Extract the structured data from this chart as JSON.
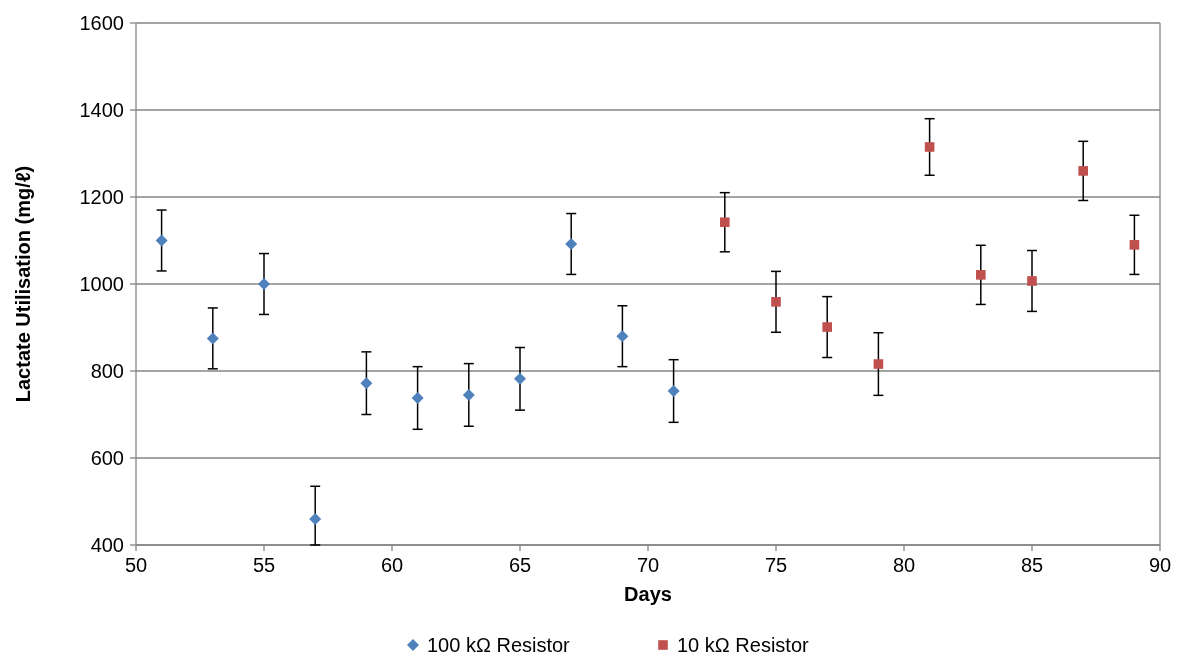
{
  "chart_data": {
    "type": "scatter",
    "xlabel": "Days",
    "ylabel": "Lactate Utilisation (mg/ℓ)",
    "xlim": [
      50,
      90
    ],
    "xticks": [
      50,
      55,
      60,
      65,
      70,
      75,
      80,
      85,
      90
    ],
    "ylim": [
      400,
      1600
    ],
    "yticks": [
      400,
      600,
      800,
      1000,
      1200,
      1400,
      1600
    ],
    "grid": "y",
    "legend": "bottom",
    "series": [
      {
        "name": "100 kΩ Resistor",
        "color": "#4f81bd",
        "marker": "diamond",
        "x": [
          51,
          53,
          55,
          57,
          59,
          61,
          63,
          65,
          67,
          69,
          71
        ],
        "values": [
          1100,
          875,
          1000,
          460,
          772,
          738,
          745,
          782,
          1092,
          880,
          754
        ],
        "errors": [
          70,
          70,
          70,
          [
            400,
            535
          ],
          72,
          72,
          72,
          72,
          70,
          70,
          72
        ]
      },
      {
        "name": "10 kΩ Resistor",
        "color": "#c0504d",
        "marker": "square",
        "x": [
          73,
          75,
          77,
          79,
          81,
          83,
          85,
          87,
          89
        ],
        "values": [
          1142,
          959,
          901,
          816,
          1315,
          1021,
          1007,
          1260,
          1090
        ],
        "errors": [
          68,
          70,
          70,
          72,
          65,
          68,
          70,
          68,
          68
        ]
      }
    ]
  }
}
